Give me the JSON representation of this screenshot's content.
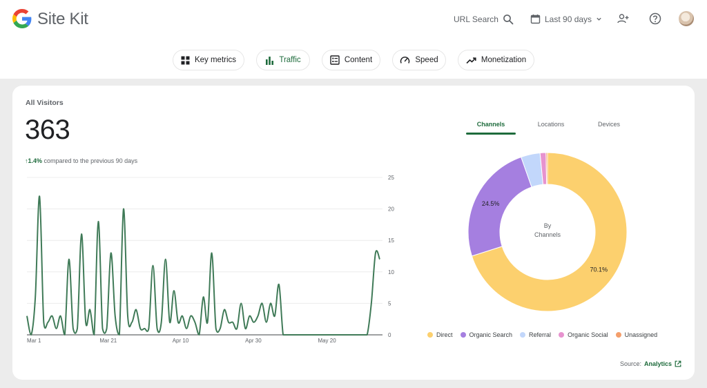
{
  "app": {
    "brand": "Site Kit"
  },
  "header": {
    "url_search_label": "URL Search",
    "date_range_label": "Last 90 days"
  },
  "tabs": [
    {
      "label": "Key metrics",
      "icon": "grid-icon"
    },
    {
      "label": "Traffic",
      "icon": "bar-chart-icon",
      "active": true
    },
    {
      "label": "Content",
      "icon": "content-list-icon"
    },
    {
      "label": "Speed",
      "icon": "speedometer-icon"
    },
    {
      "label": "Monetization",
      "icon": "trending-up-icon"
    }
  ],
  "card": {
    "title": "All Visitors",
    "total": "363",
    "delta_arrow": "↑",
    "delta_value": "1.4%",
    "delta_text": "compared to the previous 90 days",
    "subtabs": [
      "Channels",
      "Locations",
      "Devices"
    ],
    "source_label": "Source:",
    "source_link": "Analytics"
  },
  "colors": {
    "accent": "#1e6b3c",
    "line": "#3f7a57",
    "direct": "#fcd06e",
    "organic_search": "#a57fe0",
    "referral": "#c2d7fb",
    "organic_social": "#e793cf",
    "unassigned": "#f49e6b"
  },
  "chart_data": [
    {
      "type": "line",
      "x_ticks": [
        "Mar 1",
        "Mar 21",
        "Apr 10",
        "Apr 30",
        "May 20"
      ],
      "y_ticks": [
        0,
        5,
        10,
        15,
        20,
        25
      ],
      "ylim": [
        0,
        25
      ],
      "grid": true,
      "values": [
        3,
        0,
        6,
        22,
        2,
        2,
        3,
        1,
        3,
        0,
        12,
        1,
        1,
        16,
        2,
        4,
        0,
        18,
        1,
        1,
        13,
        3,
        0,
        20,
        3,
        2,
        4,
        1,
        1,
        1,
        11,
        1,
        2,
        12,
        2,
        7,
        2,
        3,
        1,
        3,
        2,
        0,
        6,
        2,
        13,
        1,
        1,
        4,
        2,
        2,
        1,
        5,
        1,
        3,
        2,
        3,
        5,
        2,
        5,
        3,
        8,
        0,
        0,
        0,
        0,
        0,
        0,
        0,
        0,
        0,
        0,
        0,
        0,
        0,
        0,
        0,
        0,
        0,
        0,
        0,
        0,
        0,
        5,
        13,
        12
      ]
    },
    {
      "type": "pie",
      "center_label": [
        "By",
        "Channels"
      ],
      "slices": [
        {
          "name": "Direct",
          "value": 70.1,
          "label": "70.1%"
        },
        {
          "name": "Organic Search",
          "value": 24.5,
          "label": "24.5%"
        },
        {
          "name": "Referral",
          "value": 3.9,
          "label": ""
        },
        {
          "name": "Organic Social",
          "value": 1.2,
          "label": ""
        },
        {
          "name": "Unassigned",
          "value": 0.3,
          "label": ""
        }
      ]
    }
  ]
}
